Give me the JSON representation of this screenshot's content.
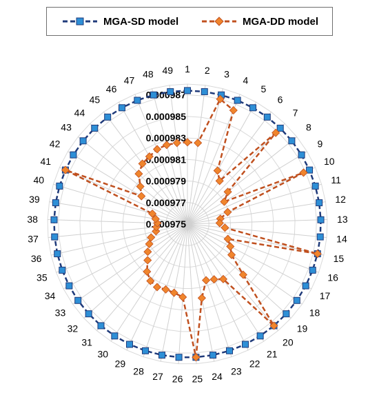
{
  "chart_data": {
    "type": "radar",
    "title": "",
    "categories": [
      "1",
      "2",
      "3",
      "4",
      "5",
      "6",
      "7",
      "8",
      "9",
      "10",
      "11",
      "12",
      "13",
      "14",
      "15",
      "16",
      "17",
      "18",
      "19",
      "20",
      "21",
      "22",
      "23",
      "24",
      "25",
      "26",
      "27",
      "28",
      "29",
      "30",
      "31",
      "32",
      "33",
      "34",
      "35",
      "36",
      "37",
      "38",
      "39",
      "40",
      "41",
      "42",
      "43",
      "44",
      "45",
      "46",
      "47",
      "48",
      "49"
    ],
    "radial_axis": {
      "range": [
        0.000975,
        0.000988
      ],
      "tick_labels": [
        "0.000975",
        "0.000977",
        "0.000979",
        "0.000981",
        "0.000983",
        "0.000985",
        "0.000987"
      ],
      "tick_values": [
        0.000975,
        0.000977,
        0.000979,
        0.000981,
        0.000983,
        0.000985,
        0.000987
      ]
    },
    "legend_position": "top",
    "grid": true,
    "series": [
      {
        "name": "MGA-SD model",
        "color": "#1f3a7a",
        "marker_color": "#2e8fd6",
        "marker": "square",
        "values": [
          0.0009874,
          0.0009874,
          0.0009874,
          0.0009874,
          0.0009874,
          0.0009874,
          0.0009874,
          0.0009874,
          0.0009874,
          0.0009874,
          0.0009874,
          0.0009874,
          0.0009874,
          0.0009874,
          0.0009874,
          0.0009874,
          0.0009874,
          0.0009874,
          0.0009874,
          0.0009874,
          0.0009874,
          0.0009874,
          0.0009874,
          0.0009874,
          0.0009874,
          0.0009874,
          0.0009874,
          0.0009874,
          0.0009874,
          0.0009874,
          0.0009874,
          0.0009874,
          0.0009874,
          0.0009874,
          0.0009874,
          0.0009874,
          0.0009874,
          0.0009874,
          0.0009874,
          0.0009874,
          0.0009874,
          0.0009874,
          0.0009874,
          0.0009874,
          0.0009874,
          0.0009874,
          0.0009874,
          0.0009874,
          0.0009874
        ]
      },
      {
        "name": "MGA-DD model",
        "color": "#c0501f",
        "marker_color": "#f0852d",
        "marker": "diamond",
        "values": [
          0.0009826,
          0.0009826,
          0.000987,
          0.0009864,
          0.0009807,
          0.00098,
          0.0009868,
          0.0009798,
          0.000979,
          0.0009868,
          0.0009789,
          0.0009781,
          0.000978,
          0.0009785,
          0.0009874,
          0.000979,
          0.0009795,
          0.00098,
          0.000982,
          0.0009874,
          0.0009811,
          0.0009807,
          0.0009805,
          0.000982,
          0.0009874,
          0.0009818,
          0.0009815,
          0.0009814,
          0.0009815,
          0.0009813,
          0.0009808,
          0.00098,
          0.0009795,
          0.000979,
          0.0009786,
          0.000978,
          0.0009779,
          0.0009778,
          0.000978,
          0.0009784,
          0.0009874,
          0.00098,
          0.0009806,
          0.0009815,
          0.000982,
          0.0009822,
          0.0009825,
          0.0009826,
          0.0009826
        ]
      }
    ]
  },
  "legend": {
    "sd_label": "MGA-SD model",
    "dd_label": "MGA-DD model"
  }
}
